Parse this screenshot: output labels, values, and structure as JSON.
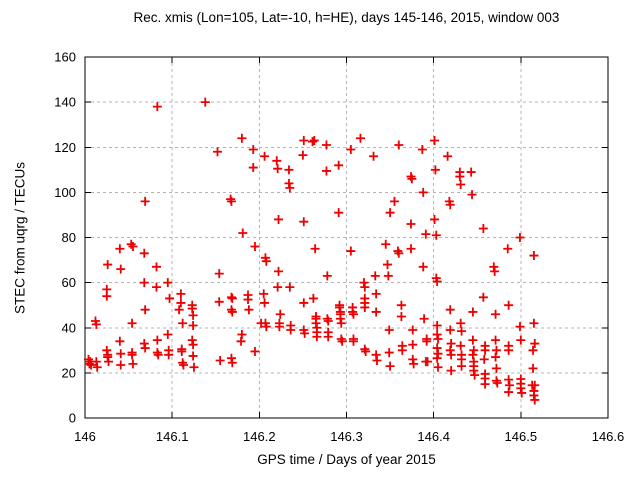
{
  "window": {
    "background": "#ffffff"
  },
  "chart_data": {
    "type": "scatter",
    "title": "Rec. xmis (Lon=105, Lat=-10, h=HE), days 145-146, 2015, window 003",
    "xlabel": "GPS time / Days of year 2015",
    "ylabel": "STEC from uqrg / TECUs",
    "xlim": [
      146,
      146.6
    ],
    "ylim": [
      0,
      160
    ],
    "xticks": {
      "values": [
        146,
        146.1,
        146.2,
        146.3,
        146.4,
        146.5,
        146.6
      ],
      "labels": [
        "146",
        "146.1",
        "146.2",
        "146.3",
        "146.4",
        "146.5",
        "146.6"
      ]
    },
    "yticks": {
      "values": [
        0,
        20,
        40,
        60,
        80,
        100,
        120,
        140,
        160
      ],
      "labels": [
        "0",
        "20",
        "40",
        "60",
        "80",
        "100",
        "120",
        "140",
        "160"
      ]
    },
    "grid": true,
    "legend": null,
    "marker": "plus",
    "marker_color": "#ee0000",
    "grid_color": "#b4b4b4",
    "axis_color": "#000000",
    "series": [
      {
        "name": "STEC",
        "points": [
          [
            146.004,
            26
          ],
          [
            146.005,
            24
          ],
          [
            146.006,
            25
          ],
          [
            146.007,
            23.5
          ],
          [
            146.012,
            43
          ],
          [
            146.013,
            41.5
          ],
          [
            146.013,
            25
          ],
          [
            146.014,
            22.5
          ],
          [
            146.025,
            57
          ],
          [
            146.025,
            54
          ],
          [
            146.025,
            30
          ],
          [
            146.026,
            68
          ],
          [
            146.026,
            28
          ],
          [
            146.026,
            27
          ],
          [
            146.027,
            25
          ],
          [
            146.04,
            75
          ],
          [
            146.04,
            34
          ],
          [
            146.041,
            66
          ],
          [
            146.041,
            28.5
          ],
          [
            146.041,
            23.5
          ],
          [
            146.053,
            77
          ],
          [
            146.054,
            42
          ],
          [
            146.054,
            29
          ],
          [
            146.054,
            28
          ],
          [
            146.055,
            76
          ],
          [
            146.055,
            24
          ],
          [
            146.068,
            73
          ],
          [
            146.068,
            60
          ],
          [
            146.068,
            33
          ],
          [
            146.069,
            96
          ],
          [
            146.069,
            48
          ],
          [
            146.069,
            31
          ],
          [
            146.082,
            67
          ],
          [
            146.082,
            58
          ],
          [
            146.083,
            138
          ],
          [
            146.083,
            34.5
          ],
          [
            146.083,
            29
          ],
          [
            146.084,
            28
          ],
          [
            146.095,
            60
          ],
          [
            146.095,
            37
          ],
          [
            146.096,
            30
          ],
          [
            146.096,
            28
          ],
          [
            146.097,
            53
          ],
          [
            146.108,
            48
          ],
          [
            146.11,
            55
          ],
          [
            146.11,
            51
          ],
          [
            146.111,
            30.5
          ],
          [
            146.111,
            29.5
          ],
          [
            146.112,
            42
          ],
          [
            146.112,
            24.5
          ],
          [
            146.113,
            23.5
          ],
          [
            146.123,
            50
          ],
          [
            146.123,
            48.5
          ],
          [
            146.123,
            34.5
          ],
          [
            146.124,
            45.5
          ],
          [
            146.124,
            41
          ],
          [
            146.124,
            32.5
          ],
          [
            146.124,
            27.5
          ],
          [
            146.125,
            22.5
          ],
          [
            146.138,
            140
          ],
          [
            146.152,
            118
          ],
          [
            146.154,
            64
          ],
          [
            146.154,
            51.5
          ],
          [
            146.155,
            25.5
          ],
          [
            146.167,
            97
          ],
          [
            146.168,
            96
          ],
          [
            146.168,
            53.5
          ],
          [
            146.168,
            48
          ],
          [
            146.168,
            26.5
          ],
          [
            146.169,
            53
          ],
          [
            146.169,
            47
          ],
          [
            146.169,
            24.5
          ],
          [
            146.18,
            124
          ],
          [
            146.179,
            34
          ],
          [
            146.18,
            37
          ],
          [
            146.181,
            82
          ],
          [
            146.187,
            54.5
          ],
          [
            146.187,
            52.5
          ],
          [
            146.188,
            48
          ],
          [
            146.193,
            119
          ],
          [
            146.193,
            111
          ],
          [
            146.195,
            76
          ],
          [
            146.195,
            29.5
          ],
          [
            146.202,
            42
          ],
          [
            146.205,
            55
          ],
          [
            146.206,
            51
          ],
          [
            146.206,
            116
          ],
          [
            146.207,
            71
          ],
          [
            146.207,
            42
          ],
          [
            146.208,
            69.5
          ],
          [
            146.208,
            40.5
          ],
          [
            146.22,
            114
          ],
          [
            146.221,
            110.5
          ],
          [
            146.221,
            58
          ],
          [
            146.222,
            88
          ],
          [
            146.222,
            65
          ],
          [
            146.223,
            42
          ],
          [
            146.223,
            40.5
          ],
          [
            146.224,
            46
          ],
          [
            146.234,
            110
          ],
          [
            146.234,
            104
          ],
          [
            146.235,
            102
          ],
          [
            146.235,
            58
          ],
          [
            146.236,
            41
          ],
          [
            146.236,
            39
          ],
          [
            146.25,
            116.5
          ],
          [
            146.251,
            123
          ],
          [
            146.251,
            87
          ],
          [
            146.251,
            51
          ],
          [
            146.251,
            39
          ],
          [
            146.252,
            37.5
          ],
          [
            146.261,
            122.5
          ],
          [
            146.262,
            53
          ],
          [
            146.263,
            123
          ],
          [
            146.264,
            75
          ],
          [
            146.265,
            45
          ],
          [
            146.265,
            44
          ],
          [
            146.265,
            42
          ],
          [
            146.266,
            40
          ],
          [
            146.266,
            38
          ],
          [
            146.266,
            36
          ],
          [
            146.277,
            121
          ],
          [
            146.277,
            109.5
          ],
          [
            146.278,
            63
          ],
          [
            146.278,
            44
          ],
          [
            146.279,
            43
          ],
          [
            146.279,
            38
          ],
          [
            146.279,
            36
          ],
          [
            146.291,
            112
          ],
          [
            146.291,
            91
          ],
          [
            146.292,
            50
          ],
          [
            146.292,
            49
          ],
          [
            146.293,
            47
          ],
          [
            146.293,
            46
          ],
          [
            146.293,
            44
          ],
          [
            146.294,
            42
          ],
          [
            146.294,
            35
          ],
          [
            146.295,
            34
          ],
          [
            146.305,
            119
          ],
          [
            146.305,
            74
          ],
          [
            146.307,
            49
          ],
          [
            146.307,
            47
          ],
          [
            146.308,
            46
          ],
          [
            146.308,
            35
          ],
          [
            146.308,
            34
          ],
          [
            146.316,
            124
          ],
          [
            146.32,
            60
          ],
          [
            146.321,
            58
          ],
          [
            146.321,
            53
          ],
          [
            146.321,
            51
          ],
          [
            146.321,
            49
          ],
          [
            146.321,
            30.5
          ],
          [
            146.322,
            29.5
          ],
          [
            146.331,
            116
          ],
          [
            146.333,
            63
          ],
          [
            146.334,
            55
          ],
          [
            146.334,
            47
          ],
          [
            146.334,
            28
          ],
          [
            146.335,
            25.5
          ],
          [
            146.345,
            77
          ],
          [
            146.347,
            68
          ],
          [
            146.348,
            63
          ],
          [
            146.349,
            39
          ],
          [
            146.349,
            29
          ],
          [
            146.35,
            91
          ],
          [
            146.35,
            23
          ],
          [
            146.355,
            96
          ],
          [
            146.359,
            74
          ],
          [
            146.36,
            121
          ],
          [
            146.36,
            73
          ],
          [
            146.363,
            50
          ],
          [
            146.363,
            45
          ],
          [
            146.364,
            32
          ],
          [
            146.364,
            30
          ],
          [
            146.374,
            107
          ],
          [
            146.374,
            86
          ],
          [
            146.374,
            75
          ],
          [
            146.375,
            106
          ],
          [
            146.376,
            39
          ],
          [
            146.376,
            32.5
          ],
          [
            146.376,
            26
          ],
          [
            146.377,
            24
          ],
          [
            146.387,
            119
          ],
          [
            146.388,
            100
          ],
          [
            146.388,
            67
          ],
          [
            146.389,
            44
          ],
          [
            146.391,
            81.5
          ],
          [
            146.391,
            25
          ],
          [
            146.392,
            35
          ],
          [
            146.392,
            34
          ],
          [
            146.393,
            25
          ],
          [
            146.401,
            123
          ],
          [
            146.401,
            88
          ],
          [
            146.402,
            110
          ],
          [
            146.403,
            81
          ],
          [
            146.403,
            62
          ],
          [
            146.404,
            60.5
          ],
          [
            146.404,
            41
          ],
          [
            146.404,
            37
          ],
          [
            146.404,
            31
          ],
          [
            146.404,
            26.5
          ],
          [
            146.405,
            35
          ],
          [
            146.405,
            28.5
          ],
          [
            146.405,
            22.5
          ],
          [
            146.416,
            116
          ],
          [
            146.418,
            96
          ],
          [
            146.419,
            94.5
          ],
          [
            146.419,
            48
          ],
          [
            146.419,
            39
          ],
          [
            146.419,
            30
          ],
          [
            146.42,
            33
          ],
          [
            146.42,
            28
          ],
          [
            146.42,
            21
          ],
          [
            146.43,
            109
          ],
          [
            146.43,
            107
          ],
          [
            146.431,
            103.5
          ],
          [
            146.431,
            42
          ],
          [
            146.431,
            32
          ],
          [
            146.432,
            38.5
          ],
          [
            146.432,
            28
          ],
          [
            146.432,
            26
          ],
          [
            146.432,
            23
          ],
          [
            146.443,
            109
          ],
          [
            146.444,
            99
          ],
          [
            146.445,
            47
          ],
          [
            146.445,
            34.5
          ],
          [
            146.445,
            28
          ],
          [
            146.446,
            30
          ],
          [
            146.446,
            25
          ],
          [
            146.446,
            23
          ],
          [
            146.446,
            21
          ],
          [
            146.447,
            19
          ],
          [
            146.457,
            84
          ],
          [
            146.457,
            53.5
          ],
          [
            146.458,
            26
          ],
          [
            146.459,
            32
          ],
          [
            146.459,
            30
          ],
          [
            146.459,
            19.5
          ],
          [
            146.459,
            17.5
          ],
          [
            146.459,
            15
          ],
          [
            146.469,
            67
          ],
          [
            146.47,
            65
          ],
          [
            146.471,
            46
          ],
          [
            146.471,
            34.5
          ],
          [
            146.471,
            27
          ],
          [
            146.472,
            30
          ],
          [
            146.472,
            22
          ],
          [
            146.472,
            16.5
          ],
          [
            146.473,
            15.5
          ],
          [
            146.485,
            75
          ],
          [
            146.486,
            50
          ],
          [
            146.486,
            32
          ],
          [
            146.486,
            30
          ],
          [
            146.486,
            17
          ],
          [
            146.486,
            11.5
          ],
          [
            146.487,
            14.5
          ],
          [
            146.499,
            80
          ],
          [
            146.499,
            40.5
          ],
          [
            146.5,
            34.5
          ],
          [
            146.5,
            17.3
          ],
          [
            146.5,
            15.2
          ],
          [
            146.5,
            13.2
          ],
          [
            146.501,
            11.1
          ],
          [
            146.513,
            14.5
          ],
          [
            146.514,
            30
          ],
          [
            146.514,
            22
          ],
          [
            146.515,
            72
          ],
          [
            146.515,
            42
          ],
          [
            146.515,
            12
          ],
          [
            146.515,
            10
          ],
          [
            146.516,
            33
          ],
          [
            146.516,
            14.5
          ],
          [
            146.516,
            8
          ]
        ]
      }
    ]
  }
}
